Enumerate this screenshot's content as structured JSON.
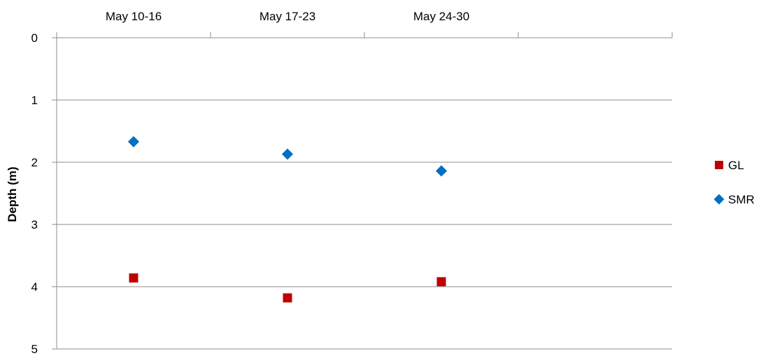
{
  "chart_data": {
    "type": "scatter",
    "title": "",
    "xlabel": "",
    "ylabel": "Depth (m)",
    "categories": [
      "May 10-16",
      "May 17-23",
      "May 24-30"
    ],
    "x_slots": 4,
    "x_axis_position": "top",
    "y_inverted": true,
    "ylim": [
      0,
      5
    ],
    "yticks": [
      0,
      1,
      2,
      3,
      4,
      5
    ],
    "grid": "horizontal",
    "legend_position": "right",
    "series": [
      {
        "name": "GL",
        "marker": "square",
        "color": "#C00000",
        "values": [
          3.86,
          4.18,
          3.92
        ]
      },
      {
        "name": "SMR",
        "marker": "diamond",
        "color": "#0070C0",
        "values": [
          1.67,
          1.87,
          2.14
        ]
      }
    ]
  }
}
